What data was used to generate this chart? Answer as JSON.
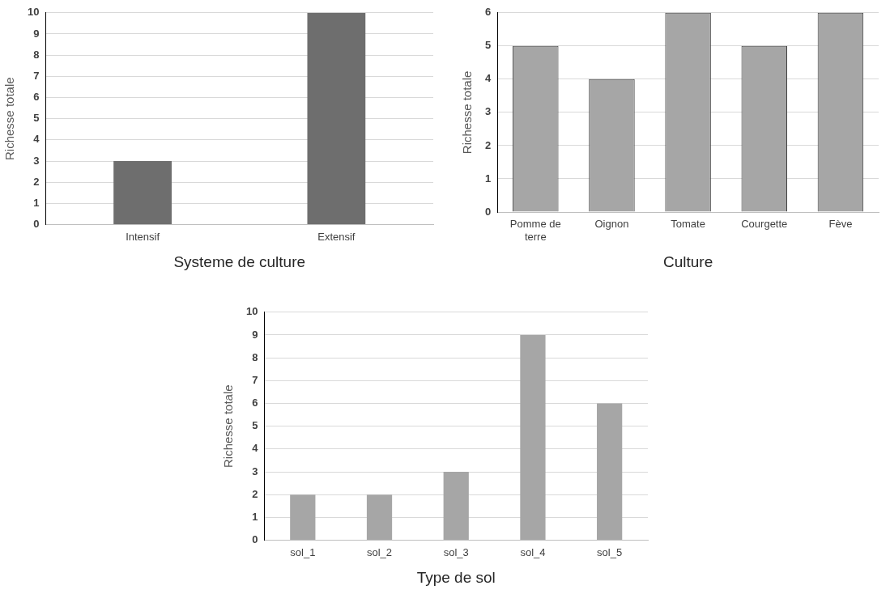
{
  "chart_data": [
    {
      "type": "bar",
      "xlabel": "Systeme de culture",
      "ylabel": "Richesse totale",
      "categories": [
        "Intensif",
        "Extensif"
      ],
      "values": [
        3,
        10
      ],
      "color": "#6e6e6e",
      "ylim": [
        0,
        10
      ],
      "yticks": [
        0,
        1,
        2,
        3,
        4,
        5,
        6,
        7,
        8,
        9,
        10
      ],
      "grid": "y"
    },
    {
      "type": "bar",
      "xlabel": "Culture",
      "ylabel": "Richesse totale",
      "categories": [
        "Pomme de terre",
        "Oignon",
        "Tomate",
        "Courgette",
        "Fève"
      ],
      "values": [
        5,
        4,
        6,
        5,
        6
      ],
      "color": "#a6a6a6",
      "ylim": [
        0,
        6
      ],
      "yticks": [
        0,
        1,
        2,
        3,
        4,
        5,
        6
      ],
      "grid": "y"
    },
    {
      "type": "bar",
      "xlabel": "Type de sol",
      "ylabel": "Richesse totale",
      "categories": [
        "sol_1",
        "sol_2",
        "sol_3",
        "sol_4",
        "sol_5"
      ],
      "values": [
        2,
        2,
        3,
        9,
        6
      ],
      "color": "#a6a6a6",
      "ylim": [
        0,
        10
      ],
      "yticks": [
        0,
        1,
        2,
        3,
        4,
        5,
        6,
        7,
        8,
        9,
        10
      ],
      "grid": "y"
    }
  ]
}
